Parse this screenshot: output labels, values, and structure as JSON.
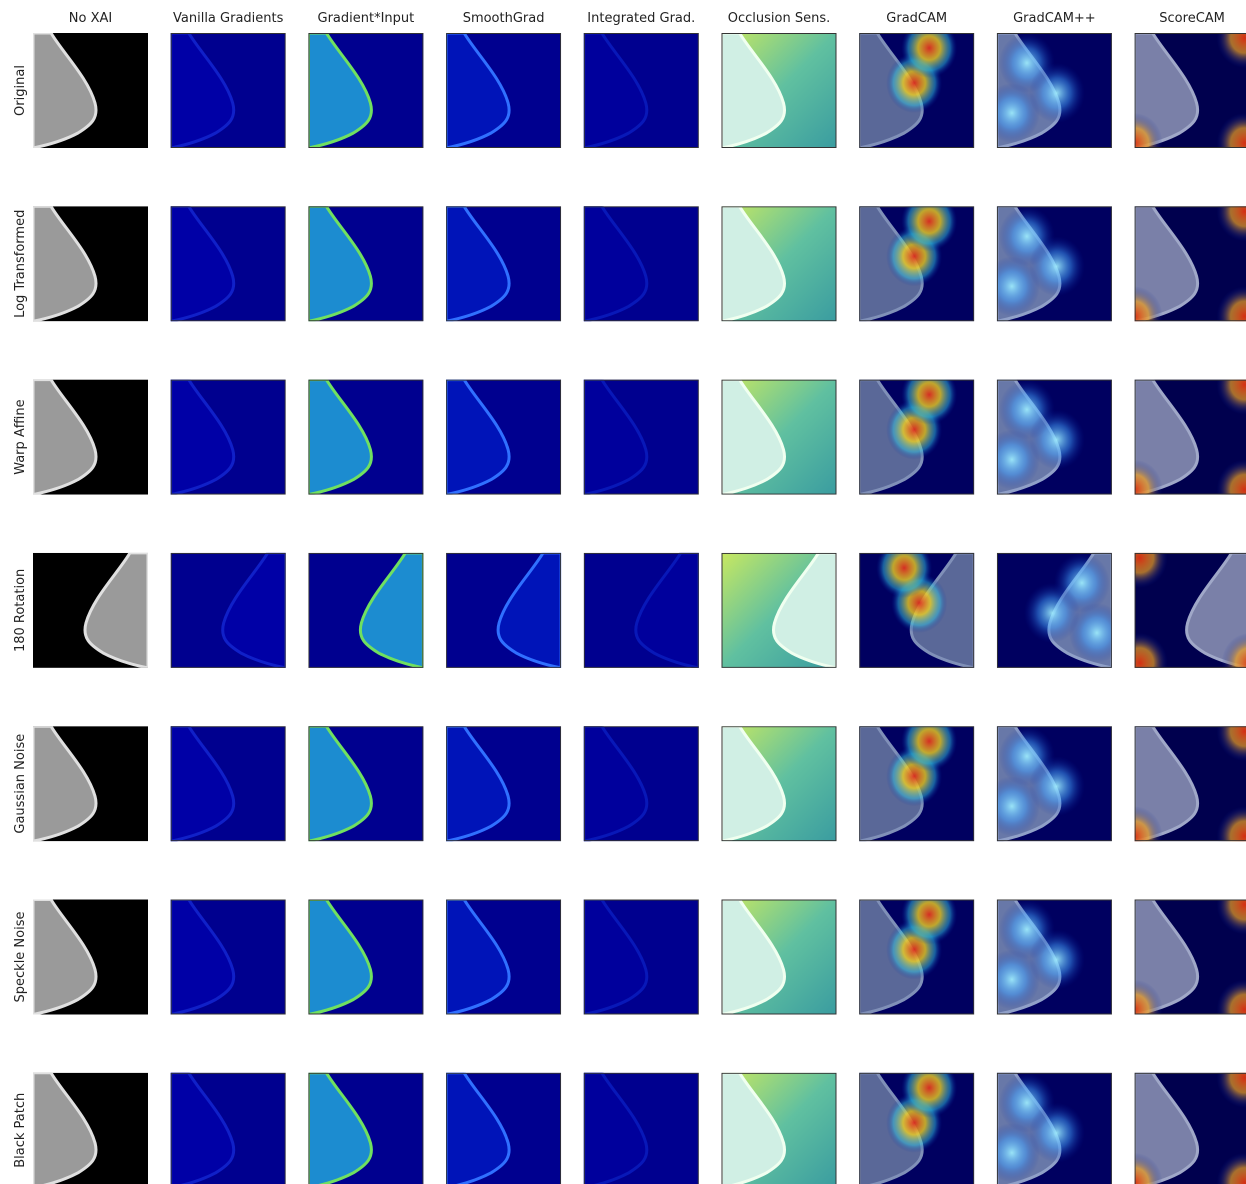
{
  "columns": [
    "No XAI",
    "Vanilla Gradients",
    "Gradient*Input",
    "SmoothGrad",
    "Integrated Grad.",
    "Occlusion Sens.",
    "GradCAM",
    "GradCAM++",
    "ScoreCAM"
  ],
  "rows": [
    "Original",
    "Log Transformed",
    "Warp Affine",
    "180 Rotation",
    "Gaussian Noise",
    "Speckle Noise",
    "Black Patch"
  ]
}
